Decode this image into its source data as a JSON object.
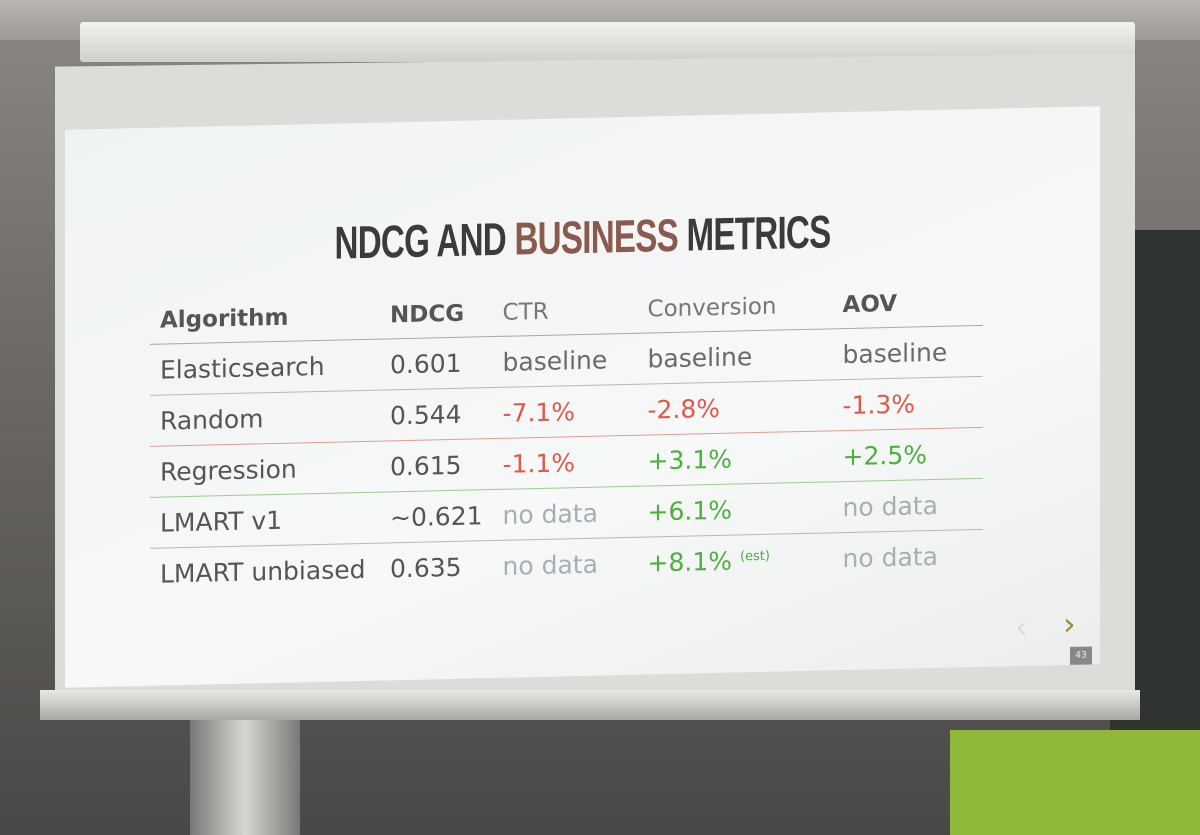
{
  "slide": {
    "title": [
      "NDCG AND",
      "BUSINESS",
      "METRICS"
    ],
    "table": {
      "header": [
        "Algorithm",
        "NDCG",
        "CTR",
        "Conversion",
        "AOV"
      ],
      "rows": [
        [
          "Elasticsearch",
          "0.601",
          "baseline",
          "baseline",
          "baseline"
        ],
        [
          "Random",
          "0.544",
          "-7.1%",
          "-2.8%",
          "-1.3%"
        ],
        [
          "Regression",
          "0.615",
          "-1.1%",
          "+3.1%",
          "+2.5%"
        ],
        [
          "LMART v1",
          "~0.621",
          "no data",
          "+6.1%",
          "no data"
        ],
        [
          "LMART unbiased",
          "0.635",
          "no data",
          "+8.1%",
          "no data"
        ]
      ],
      "note": "(est)"
    },
    "page_number": "43"
  }
}
